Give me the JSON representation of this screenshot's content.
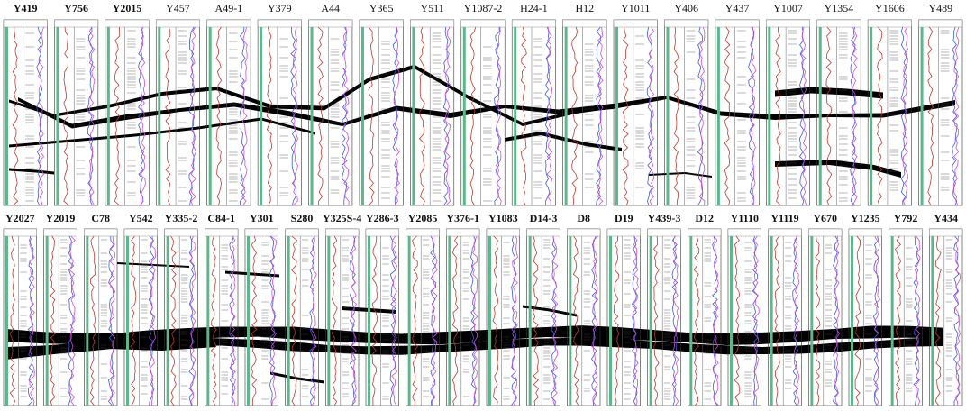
{
  "rows": [
    {
      "id": "top",
      "wells": [
        {
          "name": "Y419",
          "bold": true
        },
        {
          "name": "Y756",
          "bold": true
        },
        {
          "name": "Y2015",
          "bold": true
        },
        {
          "name": "Y457",
          "bold": false
        },
        {
          "name": "A49-1",
          "bold": false
        },
        {
          "name": "Y379",
          "bold": false
        },
        {
          "name": "A44",
          "bold": false
        },
        {
          "name": "Y365",
          "bold": false
        },
        {
          "name": "Y511",
          "bold": false
        },
        {
          "name": "Y1087-2",
          "bold": false
        },
        {
          "name": "H24-1",
          "bold": false
        },
        {
          "name": "H12",
          "bold": false
        },
        {
          "name": "Y1011",
          "bold": false
        },
        {
          "name": "Y406",
          "bold": false
        },
        {
          "name": "Y437",
          "bold": false
        },
        {
          "name": "Y1007",
          "bold": false
        },
        {
          "name": "Y1354",
          "bold": false
        },
        {
          "name": "Y1606",
          "bold": false
        },
        {
          "name": "Y489",
          "bold": false
        }
      ]
    },
    {
      "id": "bottom",
      "wells": [
        {
          "name": "Y2027",
          "bold": true
        },
        {
          "name": "Y2019",
          "bold": true
        },
        {
          "name": "C78",
          "bold": true
        },
        {
          "name": "Y542",
          "bold": true
        },
        {
          "name": "Y335-2",
          "bold": true
        },
        {
          "name": "C84-1",
          "bold": true
        },
        {
          "name": "Y301",
          "bold": true
        },
        {
          "name": "S280",
          "bold": true
        },
        {
          "name": "Y325S-4",
          "bold": true
        },
        {
          "name": "Y286-3",
          "bold": true
        },
        {
          "name": "Y2085",
          "bold": true
        },
        {
          "name": "Y376-1",
          "bold": true
        },
        {
          "name": "Y1083",
          "bold": true
        },
        {
          "name": "D14-3",
          "bold": true
        },
        {
          "name": "D8",
          "bold": true
        },
        {
          "name": "D19",
          "bold": true
        },
        {
          "name": "Y439-3",
          "bold": true
        },
        {
          "name": "D12",
          "bold": true
        },
        {
          "name": "Y1110",
          "bold": true
        },
        {
          "name": "Y1119",
          "bold": true
        },
        {
          "name": "Y670",
          "bold": true
        },
        {
          "name": "Y1235",
          "bold": true
        },
        {
          "name": "Y792",
          "bold": true
        },
        {
          "name": "Y434",
          "bold": true
        }
      ]
    }
  ],
  "colors": {
    "gr_track": "#5bb88a",
    "curve_red": "#c0392b",
    "curve_blue": "#3b5bdb",
    "curve_magenta": "#d04ad8",
    "curve_cyan": "#40b4d8",
    "sand_body": "#000000",
    "frame": "#333333"
  }
}
